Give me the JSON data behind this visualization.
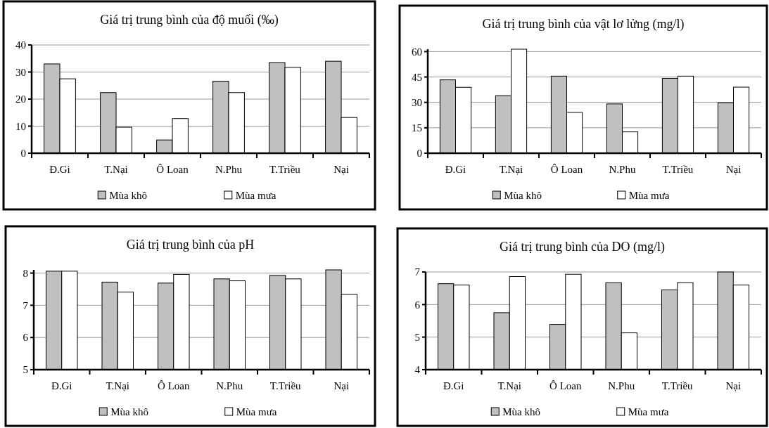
{
  "chart_data": [
    {
      "type": "bar",
      "title": "Giá trị trung bình của độ muối (‰)",
      "categories": [
        "Đ.Gi",
        "T.Nại",
        "Ô Loan",
        "N.Phu",
        "T.Triều",
        "Nại"
      ],
      "series": [
        {
          "name": "Mùa khô",
          "color": "#c0c0c0",
          "values": [
            33.0,
            22.4,
            4.9,
            26.6,
            33.5,
            34.0
          ]
        },
        {
          "name": "Mùa mưa",
          "color": "#ffffff",
          "values": [
            27.5,
            9.6,
            12.8,
            22.4,
            31.7,
            13.2
          ]
        }
      ],
      "ylim": [
        0,
        40
      ],
      "yticks": [
        0,
        10,
        20,
        30,
        40
      ],
      "grid": "y",
      "legend": "bottom"
    },
    {
      "type": "bar",
      "title": "Giá trị trung bình của vật lơ lửng (mg/l)",
      "categories": [
        "Đ.Gi",
        "T.Nại",
        "Ô Loan",
        "N.Phu",
        "T.Triều",
        "Nại"
      ],
      "series": [
        {
          "name": "Mùa khô",
          "color": "#c0c0c0",
          "values": [
            43.3,
            34.0,
            45.5,
            29.1,
            44.2,
            29.8
          ]
        },
        {
          "name": "Mùa mưa",
          "color": "#ffffff",
          "values": [
            38.9,
            61.4,
            24.1,
            12.6,
            45.5,
            39.0
          ]
        }
      ],
      "ylim": [
        0,
        61.4
      ],
      "yticks": [
        0,
        15,
        30,
        45,
        60
      ],
      "grid": "y",
      "legend": "bottom"
    },
    {
      "type": "bar",
      "title": "Giá trị trung bình của pH",
      "categories": [
        "Đ.Gi",
        "T.Nại",
        "Ô Loan",
        "N.Phu",
        "T.Triều",
        "Nại"
      ],
      "series": [
        {
          "name": "Mùa khô",
          "color": "#c0c0c0",
          "values": [
            8.06,
            7.72,
            7.69,
            7.82,
            7.93,
            8.1
          ]
        },
        {
          "name": "Mùa mưa",
          "color": "#ffffff",
          "values": [
            8.06,
            7.41,
            7.96,
            7.76,
            7.82,
            7.34
          ]
        }
      ],
      "ylim": [
        5,
        8.1
      ],
      "yticks": [
        5,
        6,
        7,
        8
      ],
      "grid": "y",
      "legend": "bottom"
    },
    {
      "type": "bar",
      "title": "Giá trị trung bình của DO (mg/l)",
      "categories": [
        "Đ.Gi",
        "T.Nại",
        "Ô Loan",
        "N.Phu",
        "T.Triều",
        "Nại"
      ],
      "series": [
        {
          "name": "Mùa khô",
          "color": "#c0c0c0",
          "values": [
            6.64,
            5.75,
            5.39,
            6.67,
            6.45,
            7.0
          ]
        },
        {
          "name": "Mùa mưa",
          "color": "#ffffff",
          "values": [
            6.6,
            6.86,
            6.93,
            5.13,
            6.67,
            6.6
          ]
        }
      ],
      "ylim": [
        4,
        7
      ],
      "yticks": [
        4,
        5,
        6,
        7
      ],
      "grid": "y",
      "legend": "bottom"
    }
  ]
}
